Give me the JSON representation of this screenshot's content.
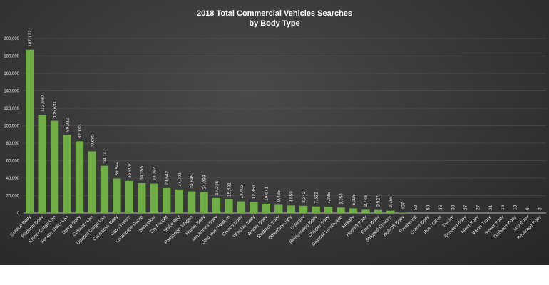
{
  "chart_data": {
    "type": "bar",
    "title_line1": "2018 Total Commercial Vehicles Searches",
    "title_line2": "by Body Type",
    "xlabel": "",
    "ylabel": "",
    "ylim": [
      0,
      200000
    ],
    "yticks": [
      "0",
      "20,000",
      "40,000",
      "60,000",
      "80,000",
      "100,000",
      "120,000",
      "140,000",
      "160,000",
      "180,000",
      "200,000"
    ],
    "grid": true,
    "bar_color": "#70ad47",
    "categories": [
      "Service Body",
      "Platform Body",
      "Empty Cargo Van",
      "Service Utility Van",
      "Dump Body",
      "Cutaway Van",
      "Upfitted Cargo Van",
      "Contractor Body",
      "Cab Chassis",
      "Landscape Dump",
      "Snowplow",
      "Dry Freight",
      "Stake Bed",
      "Passenger Wagon",
      "Hauler Body",
      "Mechanics Body",
      "Step Van / Walk-in",
      "Combo Body",
      "Wrecker Body",
      "Welder Body",
      "Rollback Body",
      "Other/Specialty",
      "Cutaway",
      "Refrigerated Body",
      "Chipper Body",
      "Dovetail Landscape",
      "Mobility",
      "Hooklift Body",
      "Glass Body",
      "Stripped Chassis",
      "Roll-Off Body",
      "Paratransit",
      "Crane Body",
      "Bus / Other",
      "Tractor",
      "Armored Body",
      "Mixer Body",
      "Water Truck",
      "Sewer Body",
      "Garbage Body",
      "Log Body",
      "Beverage Body"
    ],
    "values": [
      187122,
      112680,
      105631,
      89812,
      82183,
      70695,
      54147,
      39544,
      36809,
      34355,
      33784,
      28642,
      27061,
      24845,
      24099,
      17246,
      15481,
      13402,
      12853,
      10671,
      9465,
      8659,
      8342,
      7522,
      7235,
      6354,
      5335,
      3748,
      3527,
      2756,
      407,
      52,
      50,
      36,
      33,
      27,
      27,
      21,
      16,
      13,
      9,
      3
    ],
    "data_labels": [
      "187,122",
      "112,680",
      "105,631",
      "89,812",
      "82,183",
      "70,695",
      "54,147",
      "39,544",
      "36,809",
      "34,355",
      "33,784",
      "28,642",
      "27,061",
      "24,845",
      "24,099",
      "17,246",
      "15,481",
      "13,402",
      "12,853",
      "10,671",
      "9,465",
      "8,659",
      "8,342",
      "7,522",
      "7,235",
      "6,354",
      "5,335",
      "3,748",
      "3,527",
      "2,756",
      "407",
      "52",
      "50",
      "36",
      "33",
      "27",
      "27",
      "21",
      "16",
      "13",
      "9",
      "3"
    ]
  }
}
